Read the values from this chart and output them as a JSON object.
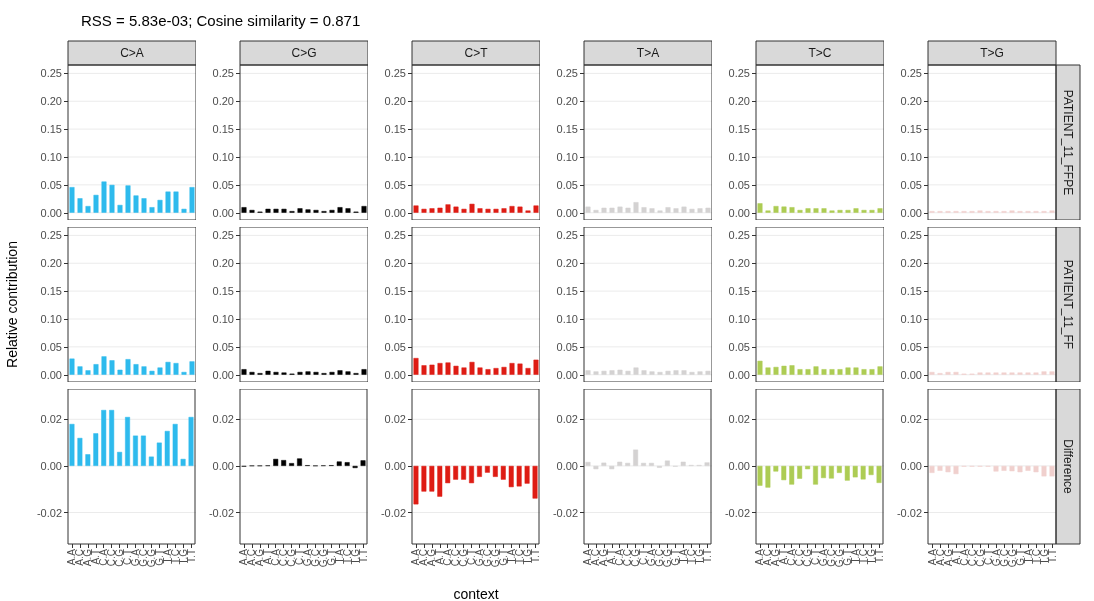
{
  "chart_data": [
    {
      "type": "other",
      "title": "RSS = 5.83e-03; Cosine similarity = 0.871"
    },
    {
      "type": "bar",
      "subtitle": "C>A",
      "categories": [
        null,
        null,
        null,
        null,
        null,
        null,
        null,
        null,
        null,
        null,
        null,
        null,
        null,
        null,
        null,
        null
      ],
      "values": [
        0.046,
        0.026,
        0.012,
        0.032,
        0.056,
        0.05,
        0.014,
        0.049,
        0.031,
        0.026,
        0.01,
        0.023,
        0.038,
        0.038,
        0.007,
        0.046
      ],
      "color": "#2ebaed",
      "ylim": [
        -0.013,
        0.265
      ],
      "yticks": [
        {
          "value": 0,
          "label": "0.00"
        },
        {
          "value": 0.05,
          "label": "0.05"
        },
        {
          "value": 0.1,
          "label": "0.10"
        },
        {
          "value": 0.15,
          "label": "0.15"
        },
        {
          "value": 0.2,
          "label": "0.20"
        },
        {
          "value": 0.25,
          "label": "0.25"
        }
      ],
      "grid": true,
      "tick_labels": "y"
    },
    {
      "type": "bar",
      "subtitle": "C>G",
      "categories": [
        null,
        null,
        null,
        null,
        null,
        null,
        null,
        null,
        null,
        null,
        null,
        null,
        null,
        null,
        null,
        null
      ],
      "values": [
        0.01,
        0.005,
        0.002,
        0.007,
        0.007,
        0.007,
        0.003,
        0.008,
        0.006,
        0.005,
        0.003,
        0.005,
        0.01,
        0.008,
        0.002,
        0.012
      ],
      "color": "#000000",
      "ylim": [
        -0.013,
        0.265
      ],
      "yticks": [
        {
          "value": 0,
          "label": "0.00"
        },
        {
          "value": 0.05,
          "label": "0.05"
        },
        {
          "value": 0.1,
          "label": "0.10"
        },
        {
          "value": 0.15,
          "label": "0.15"
        },
        {
          "value": 0.2,
          "label": "0.20"
        },
        {
          "value": 0.25,
          "label": "0.25"
        }
      ],
      "grid": true,
      "tick_labels": "y"
    },
    {
      "type": "bar",
      "subtitle": "C>T",
      "categories": [
        null,
        null,
        null,
        null,
        null,
        null,
        null,
        null,
        null,
        null,
        null,
        null,
        null,
        null,
        null,
        null
      ],
      "values": [
        0.013,
        0.007,
        0.008,
        0.009,
        0.015,
        0.011,
        0.007,
        0.016,
        0.008,
        0.007,
        0.007,
        0.008,
        0.012,
        0.011,
        0.004,
        0.013
      ],
      "color": "#de1c14",
      "ylim": [
        -0.013,
        0.265
      ],
      "yticks": [
        {
          "value": 0,
          "label": "0.00"
        },
        {
          "value": 0.05,
          "label": "0.05"
        },
        {
          "value": 0.1,
          "label": "0.10"
        },
        {
          "value": 0.15,
          "label": "0.15"
        },
        {
          "value": 0.2,
          "label": "0.20"
        },
        {
          "value": 0.25,
          "label": "0.25"
        }
      ],
      "grid": true,
      "tick_labels": "y"
    },
    {
      "type": "bar",
      "subtitle": "T>A",
      "categories": [
        null,
        null,
        null,
        null,
        null,
        null,
        null,
        null,
        null,
        null,
        null,
        null,
        null,
        null,
        null,
        null
      ],
      "values": [
        0.011,
        0.005,
        0.009,
        0.009,
        0.011,
        0.009,
        0.019,
        0.01,
        0.008,
        0.004,
        0.01,
        0.008,
        0.011,
        0.007,
        0.008,
        0.009
      ],
      "color": "#d4d2d2",
      "ylim": [
        -0.013,
        0.265
      ],
      "yticks": [
        {
          "value": 0,
          "label": "0.00"
        },
        {
          "value": 0.05,
          "label": "0.05"
        },
        {
          "value": 0.1,
          "label": "0.10"
        },
        {
          "value": 0.15,
          "label": "0.15"
        },
        {
          "value": 0.2,
          "label": "0.20"
        },
        {
          "value": 0.25,
          "label": "0.25"
        }
      ],
      "grid": true,
      "tick_labels": "y"
    },
    {
      "type": "bar",
      "subtitle": "T>C",
      "categories": [
        null,
        null,
        null,
        null,
        null,
        null,
        null,
        null,
        null,
        null,
        null,
        null,
        null,
        null,
        null,
        null
      ],
      "values": [
        0.017,
        0.004,
        0.012,
        0.011,
        0.01,
        0.005,
        0.008,
        0.008,
        0.008,
        0.004,
        0.005,
        0.005,
        0.008,
        0.005,
        0.005,
        0.008
      ],
      "color": "#adcc54",
      "ylim": [
        -0.013,
        0.265
      ],
      "yticks": [
        {
          "value": 0,
          "label": "0.00"
        },
        {
          "value": 0.05,
          "label": "0.05"
        },
        {
          "value": 0.1,
          "label": "0.10"
        },
        {
          "value": 0.15,
          "label": "0.15"
        },
        {
          "value": 0.2,
          "label": "0.20"
        },
        {
          "value": 0.25,
          "label": "0.25"
        }
      ],
      "grid": true,
      "tick_labels": "y"
    },
    {
      "type": "bar",
      "subtitle": "T>G",
      "y2label": "PATIENT_11_FFPE",
      "categories": [
        null,
        null,
        null,
        null,
        null,
        null,
        null,
        null,
        null,
        null,
        null,
        null,
        null,
        null,
        null,
        null
      ],
      "values": [
        0.003,
        0.003,
        0.003,
        0.003,
        0.003,
        0.003,
        0.004,
        0.003,
        0.003,
        0.003,
        0.004,
        0.003,
        0.003,
        0.003,
        0.003,
        0.004
      ],
      "color": "#f0d0ce",
      "ylim": [
        -0.013,
        0.265
      ],
      "yticks": [
        {
          "value": 0,
          "label": "0.00"
        },
        {
          "value": 0.05,
          "label": "0.05"
        },
        {
          "value": 0.1,
          "label": "0.10"
        },
        {
          "value": 0.15,
          "label": "0.15"
        },
        {
          "value": 0.2,
          "label": "0.20"
        },
        {
          "value": 0.25,
          "label": "0.25"
        }
      ],
      "grid": true,
      "tick_labels": "y"
    },
    {
      "type": "bar",
      "ylabel": "Relative contribution",
      "categories": [
        null,
        null,
        null,
        null,
        null,
        null,
        null,
        null,
        null,
        null,
        null,
        null,
        null,
        null,
        null,
        null
      ],
      "values": [
        0.029,
        0.015,
        0.008,
        0.019,
        0.033,
        0.026,
        0.009,
        0.028,
        0.019,
        0.015,
        0.007,
        0.013,
        0.023,
        0.021,
        0.005,
        0.024
      ],
      "color": "#2ebaed",
      "ylim": [
        -0.013,
        0.265
      ],
      "yticks": [
        {
          "value": 0,
          "label": "0.00"
        },
        {
          "value": 0.05,
          "label": "0.05"
        },
        {
          "value": 0.1,
          "label": "0.10"
        },
        {
          "value": 0.15,
          "label": "0.15"
        },
        {
          "value": 0.2,
          "label": "0.20"
        },
        {
          "value": 0.25,
          "label": "0.25"
        }
      ],
      "grid": true,
      "tick_labels": "y"
    },
    {
      "type": "bar",
      "categories": [
        null,
        null,
        null,
        null,
        null,
        null,
        null,
        null,
        null,
        null,
        null,
        null,
        null,
        null,
        null,
        null
      ],
      "values": [
        0.01,
        0.005,
        0.003,
        0.007,
        0.005,
        0.004,
        0.002,
        0.005,
        0.006,
        0.005,
        0.003,
        0.005,
        0.008,
        0.006,
        0.003,
        0.01
      ],
      "color": "#000000",
      "ylim": [
        -0.013,
        0.265
      ],
      "yticks": [
        {
          "value": 0,
          "label": "0.00"
        },
        {
          "value": 0.05,
          "label": "0.05"
        },
        {
          "value": 0.1,
          "label": "0.10"
        },
        {
          "value": 0.15,
          "label": "0.15"
        },
        {
          "value": 0.2,
          "label": "0.20"
        },
        {
          "value": 0.25,
          "label": "0.25"
        }
      ],
      "grid": true,
      "tick_labels": "y"
    },
    {
      "type": "bar",
      "categories": [
        null,
        null,
        null,
        null,
        null,
        null,
        null,
        null,
        null,
        null,
        null,
        null,
        null,
        null,
        null,
        null
      ],
      "values": [
        0.03,
        0.017,
        0.018,
        0.021,
        0.022,
        0.016,
        0.013,
        0.023,
        0.013,
        0.01,
        0.012,
        0.014,
        0.021,
        0.02,
        0.012,
        0.027
      ],
      "color": "#de1c14",
      "ylim": [
        -0.013,
        0.265
      ],
      "yticks": [
        {
          "value": 0,
          "label": "0.00"
        },
        {
          "value": 0.05,
          "label": "0.05"
        },
        {
          "value": 0.1,
          "label": "0.10"
        },
        {
          "value": 0.15,
          "label": "0.15"
        },
        {
          "value": 0.2,
          "label": "0.20"
        },
        {
          "value": 0.25,
          "label": "0.25"
        }
      ],
      "grid": true,
      "tick_labels": "y"
    },
    {
      "type": "bar",
      "categories": [
        null,
        null,
        null,
        null,
        null,
        null,
        null,
        null,
        null,
        null,
        null,
        null,
        null,
        null,
        null,
        null
      ],
      "values": [
        0.008,
        0.006,
        0.007,
        0.008,
        0.009,
        0.007,
        0.013,
        0.008,
        0.006,
        0.005,
        0.007,
        0.008,
        0.008,
        0.005,
        0.006,
        0.007
      ],
      "color": "#d4d2d2",
      "ylim": [
        -0.013,
        0.265
      ],
      "yticks": [
        {
          "value": 0,
          "label": "0.00"
        },
        {
          "value": 0.05,
          "label": "0.05"
        },
        {
          "value": 0.1,
          "label": "0.10"
        },
        {
          "value": 0.15,
          "label": "0.15"
        },
        {
          "value": 0.2,
          "label": "0.20"
        },
        {
          "value": 0.25,
          "label": "0.25"
        }
      ],
      "grid": true,
      "tick_labels": "y"
    },
    {
      "type": "bar",
      "categories": [
        null,
        null,
        null,
        null,
        null,
        null,
        null,
        null,
        null,
        null,
        null,
        null,
        null,
        null,
        null,
        null
      ],
      "values": [
        0.025,
        0.013,
        0.014,
        0.016,
        0.017,
        0.01,
        0.01,
        0.015,
        0.01,
        0.01,
        0.01,
        0.013,
        0.013,
        0.01,
        0.01,
        0.015
      ],
      "color": "#adcc54",
      "ylim": [
        -0.013,
        0.265
      ],
      "yticks": [
        {
          "value": 0,
          "label": "0.00"
        },
        {
          "value": 0.05,
          "label": "0.05"
        },
        {
          "value": 0.1,
          "label": "0.10"
        },
        {
          "value": 0.15,
          "label": "0.15"
        },
        {
          "value": 0.2,
          "label": "0.20"
        },
        {
          "value": 0.25,
          "label": "0.25"
        }
      ],
      "grid": true,
      "tick_labels": "y"
    },
    {
      "type": "bar",
      "y2label": "PATIENT_11_FF",
      "categories": [
        null,
        null,
        null,
        null,
        null,
        null,
        null,
        null,
        null,
        null,
        null,
        null,
        null,
        null,
        null,
        null
      ],
      "values": [
        0.005,
        0.003,
        0.005,
        0.005,
        0.002,
        0.002,
        0.004,
        0.004,
        0.004,
        0.004,
        0.004,
        0.004,
        0.004,
        0.004,
        0.006,
        0.006
      ],
      "color": "#f0d0ce",
      "ylim": [
        -0.013,
        0.265
      ],
      "yticks": [
        {
          "value": 0,
          "label": "0.00"
        },
        {
          "value": 0.05,
          "label": "0.05"
        },
        {
          "value": 0.1,
          "label": "0.10"
        },
        {
          "value": 0.15,
          "label": "0.15"
        },
        {
          "value": 0.2,
          "label": "0.20"
        },
        {
          "value": 0.25,
          "label": "0.25"
        }
      ],
      "grid": true,
      "tick_labels": "y"
    },
    {
      "type": "bar",
      "categories": [
        "A.A",
        "A.C",
        "A.G",
        "A.T",
        "C.A",
        "C.C",
        "C.G",
        "C.T",
        "G.A",
        "G.C",
        "G.G",
        "G.T",
        "T.A",
        "T.C",
        "T.G",
        "T.T"
      ],
      "values": [
        0.018,
        0.012,
        0.005,
        0.014,
        0.024,
        0.024,
        0.006,
        0.021,
        0.013,
        0.013,
        0.004,
        0.01,
        0.015,
        0.018,
        0.003,
        0.021
      ],
      "color": "#2ebaed",
      "ylim": [
        -0.0335,
        0.033
      ],
      "yticks": [
        {
          "value": -0.02,
          "label": "-0.02"
        },
        {
          "value": 0,
          "label": "0.00"
        },
        {
          "value": 0.02,
          "label": "0.02"
        }
      ],
      "grid": true
    },
    {
      "type": "bar",
      "categories": [
        "A.A",
        "A.C",
        "A.G",
        "A.T",
        "C.A",
        "C.C",
        "C.G",
        "C.T",
        "G.A",
        "G.C",
        "G.G",
        "G.T",
        "T.A",
        "T.C",
        "T.G",
        "T.T"
      ],
      "values": [
        -0.0003,
        0.0001,
        0.0001,
        0.0002,
        0.003,
        0.0025,
        0.0012,
        0.0032,
        0.0003,
        0.0001,
        0.0002,
        0.0003,
        0.0019,
        0.0016,
        -0.0009,
        0.0024
      ],
      "color": "#000000",
      "ylim": [
        -0.0335,
        0.033
      ],
      "yticks": [
        {
          "value": -0.02,
          "label": "-0.02"
        },
        {
          "value": 0,
          "label": "0.00"
        },
        {
          "value": 0.02,
          "label": "0.02"
        }
      ],
      "grid": true
    },
    {
      "type": "bar",
      "xlabel": "context",
      "categories": [
        "A.A",
        "A.C",
        "A.G",
        "A.T",
        "C.A",
        "C.C",
        "C.G",
        "C.T",
        "G.A",
        "G.C",
        "G.G",
        "G.T",
        "T.A",
        "T.C",
        "T.G",
        "T.T"
      ],
      "values": [
        -0.0165,
        -0.011,
        -0.011,
        -0.0132,
        -0.0074,
        -0.0059,
        -0.0059,
        -0.0074,
        -0.0047,
        -0.0029,
        -0.0047,
        -0.0059,
        -0.0091,
        -0.0088,
        -0.0076,
        -0.014
      ],
      "color": "#de1c14",
      "ylim": [
        -0.0335,
        0.033
      ],
      "yticks": [
        {
          "value": -0.02,
          "label": "-0.02"
        },
        {
          "value": 0,
          "label": "0.00"
        },
        {
          "value": 0.02,
          "label": "0.02"
        }
      ],
      "grid": true
    },
    {
      "type": "bar",
      "categories": [
        "A.A",
        "A.C",
        "A.G",
        "A.T",
        "C.A",
        "C.C",
        "C.G",
        "C.T",
        "G.A",
        "G.C",
        "G.G",
        "G.T",
        "T.A",
        "T.C",
        "T.G",
        "T.T"
      ],
      "values": [
        0.0017,
        -0.0014,
        0.0014,
        -0.0014,
        0.0018,
        0.0013,
        0.007,
        0.0013,
        0.0013,
        -0.0008,
        0.0023,
        -0.0003,
        0.0018,
        0.0004,
        0.0004,
        0.0015
      ],
      "color": "#d4d2d2",
      "ylim": [
        -0.0335,
        0.033
      ],
      "yticks": [
        {
          "value": -0.02,
          "label": "-0.02"
        },
        {
          "value": 0,
          "label": "0.00"
        },
        {
          "value": 0.02,
          "label": "0.02"
        }
      ],
      "grid": true
    },
    {
      "type": "bar",
      "categories": [
        "A.A",
        "A.C",
        "A.G",
        "A.T",
        "C.A",
        "C.C",
        "C.G",
        "C.T",
        "G.A",
        "G.C",
        "G.G",
        "G.T",
        "T.A",
        "T.C",
        "T.G",
        "T.T"
      ],
      "values": [
        -0.0085,
        -0.0093,
        -0.0024,
        -0.0061,
        -0.008,
        -0.0055,
        -0.0014,
        -0.008,
        -0.0052,
        -0.0054,
        -0.003,
        -0.0063,
        -0.0049,
        -0.0058,
        -0.0039,
        -0.0073
      ],
      "color": "#adcc54",
      "ylim": [
        -0.0335,
        0.033
      ],
      "yticks": [
        {
          "value": -0.02,
          "label": "-0.02"
        },
        {
          "value": 0,
          "label": "0.00"
        },
        {
          "value": 0.02,
          "label": "0.02"
        }
      ],
      "grid": true
    },
    {
      "type": "bar",
      "y2label": "Difference",
      "categories": [
        "A.A",
        "A.C",
        "A.G",
        "A.T",
        "C.A",
        "C.C",
        "C.G",
        "C.T",
        "G.A",
        "G.C",
        "G.G",
        "G.T",
        "T.A",
        "T.C",
        "T.G",
        "T.T"
      ],
      "values": [
        -0.003,
        -0.0021,
        -0.0027,
        -0.0035,
        -0.0003,
        -0.0003,
        -0.0003,
        -0.0003,
        -0.0024,
        -0.0021,
        -0.0023,
        -0.0027,
        -0.0021,
        -0.0027,
        -0.0045,
        -0.0045
      ],
      "color": "#f0d0ce",
      "ylim": [
        -0.0335,
        0.033
      ],
      "yticks": [
        {
          "value": -0.02,
          "label": "-0.02"
        },
        {
          "value": 0,
          "label": "0.00"
        },
        {
          "value": 0.02,
          "label": "0.02"
        }
      ],
      "grid": true
    }
  ]
}
